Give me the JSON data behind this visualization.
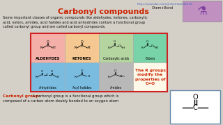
{
  "title": "Carbonyl compounds",
  "title_color": "#cc2200",
  "bg_color": "#d4d0c8",
  "url_text": "https://youtube.com/@chembond2356",
  "url_color": "#4466bb",
  "brand_text": "Chem+Bond",
  "brand_color": "#111111",
  "intro_text": "Some important classes of organic compounds like aldehydes, ketones, carboxylic\nacid, esters, amides, acid halides and acid anhydrides contain a functional group\ncalled carbonyl group and are called carbonyl compounds.",
  "intro_color": "#111111",
  "grid_border_color": "#cc2222",
  "cells_row0": [
    {
      "label": "ALDEHYDES",
      "bold": true,
      "color": "#f4b0a8"
    },
    {
      "label": "KETONES",
      "bold": true,
      "color": "#f4c890"
    },
    {
      "label": "Carboxylic acids",
      "bold": false,
      "color": "#b4d4a0"
    },
    {
      "label": "Esters",
      "bold": false,
      "color": "#78d4a8"
    }
  ],
  "cells_row1": [
    {
      "label": "Anhydrides",
      "bold": false,
      "color": "#7abce0"
    },
    {
      "label": "Acyl halides",
      "bold": false,
      "color": "#7abce0"
    },
    {
      "label": "Amides",
      "bold": false,
      "color": "#b8b8b8"
    }
  ],
  "r_groups_text": "The R groups\nmodify the\nproperties of\nC=O",
  "r_groups_color": "#cc2200",
  "r_groups_bg": "#fdf8e8",
  "carbonyl_label": "Carbonyl group:",
  "carbonyl_label_color": "#cc2200",
  "carbonyl_desc1": " A carbonyl group is a functional group which is",
  "carbonyl_desc2": "composed of a carbon atom doubly bonded to an oxygen atom",
  "carbonyl_text_color": "#111111",
  "flask_color": "#c090c0"
}
